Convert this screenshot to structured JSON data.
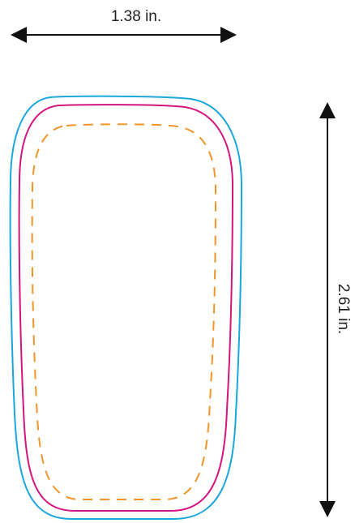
{
  "dimensions": {
    "width_label": "1.38 in.",
    "height_label": "2.61 in."
  },
  "colors": {
    "outer_outline": "#1aa7dc",
    "inner_outline": "#d4147f",
    "dashed_outline": "#f0952a",
    "arrow": "#111111"
  }
}
